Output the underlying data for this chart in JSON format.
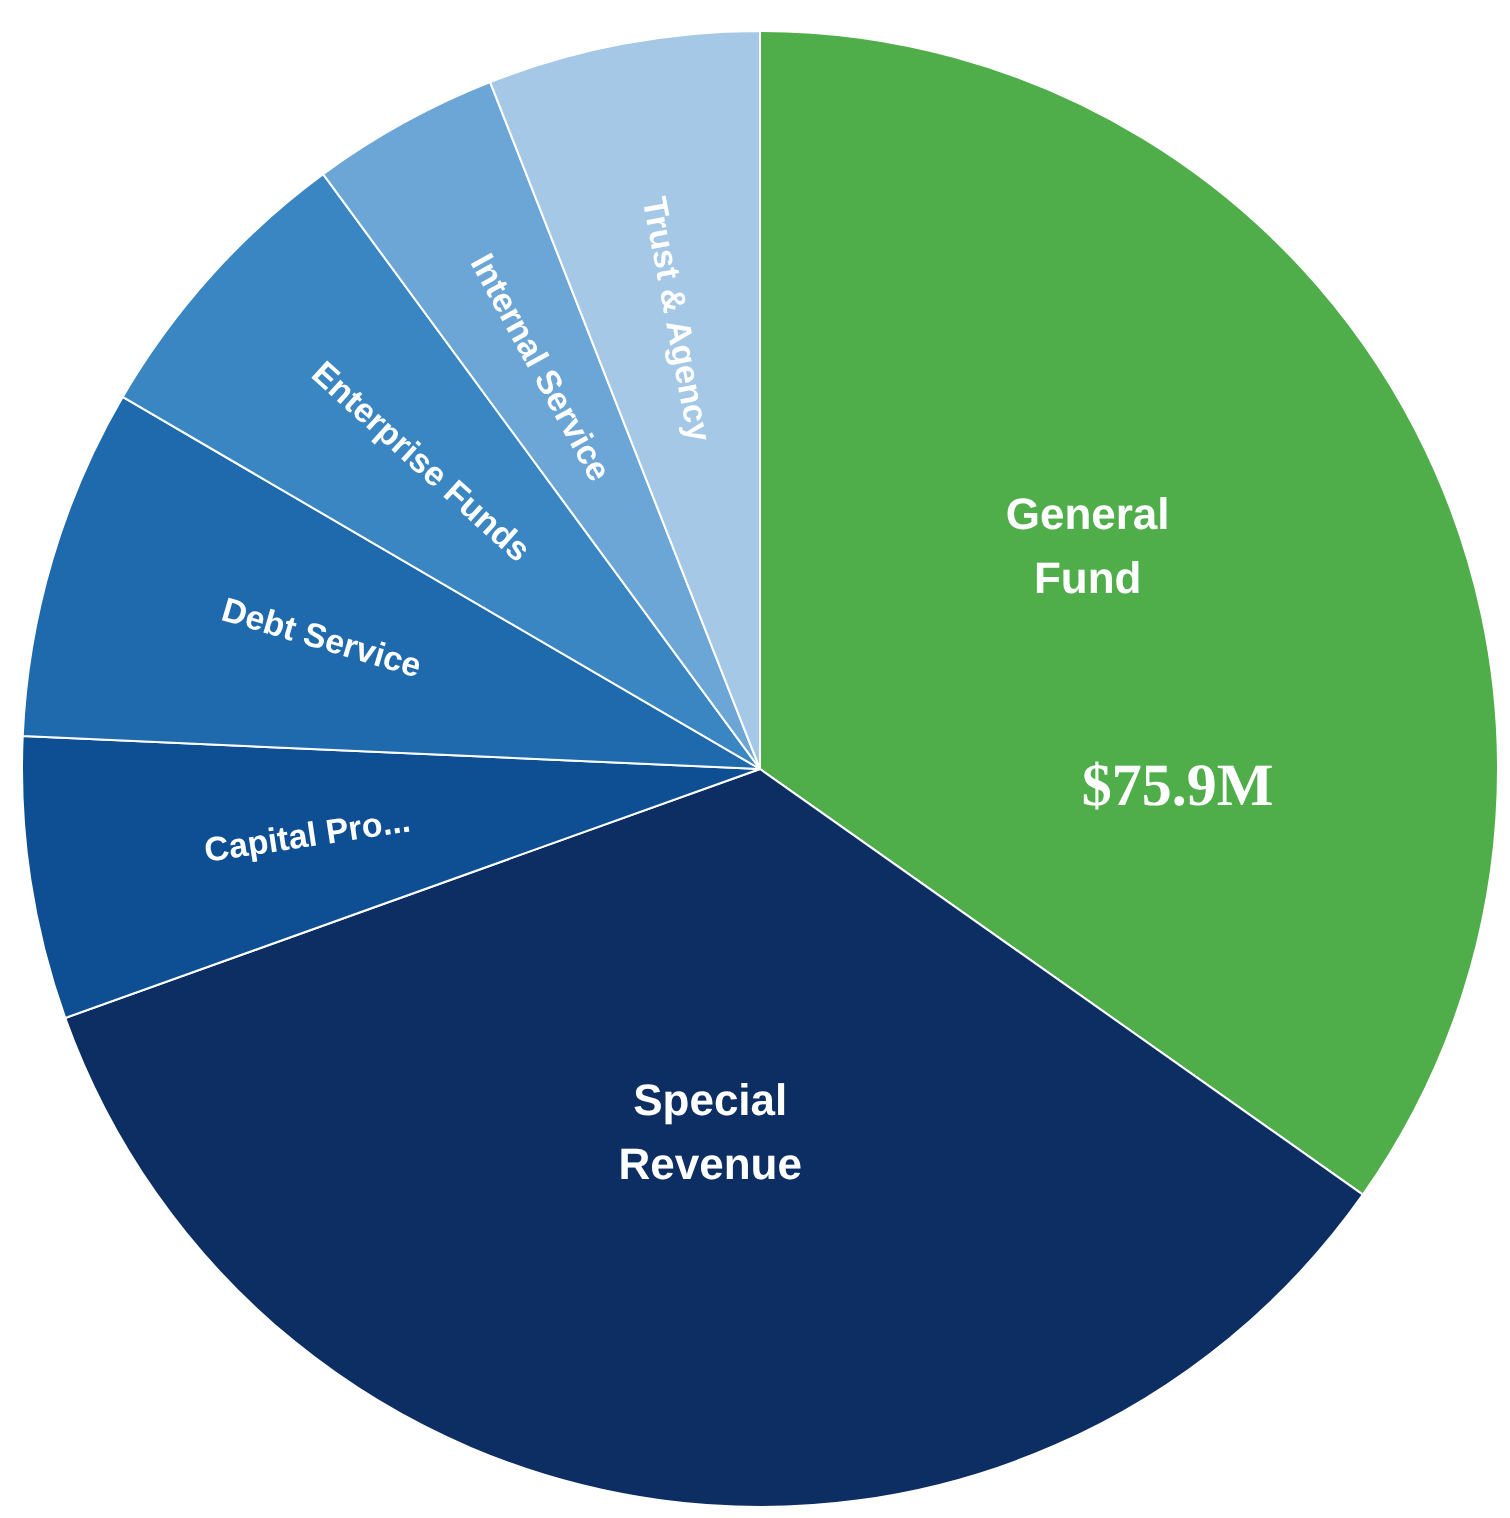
{
  "chart_data": {
    "type": "pie",
    "categories": [
      "General Fund",
      "Special Revenue",
      "Capital Pro...",
      "Debt Service",
      "Enterprise Funds",
      "Internal Service",
      "Trust & Agency"
    ],
    "values": [
      75.9,
      75.8,
      13.5,
      16.8,
      14.2,
      9.0,
      13.0
    ],
    "colors": [
      "#4fae4a",
      "#0c2e63",
      "#0e4f93",
      "#1f69ad",
      "#3a86c3",
      "#6ba6d6",
      "#a4c8e5"
    ],
    "value_labels": [
      "$75.9M",
      null,
      null,
      null,
      null,
      null,
      null
    ],
    "legend": false
  }
}
